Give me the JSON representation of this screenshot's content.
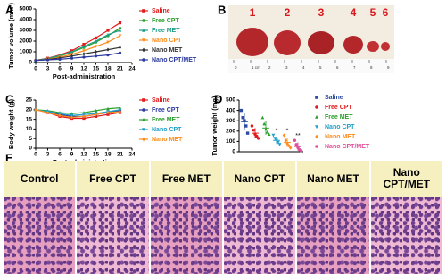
{
  "chart_data": [
    {
      "type": "line",
      "panel": "A",
      "xlabel": "Post-administration",
      "ylabel": "Tumor volume (mm³)",
      "x": [
        0,
        3,
        6,
        9,
        12,
        15,
        18,
        21
      ],
      "xlim": [
        0,
        24
      ],
      "xticks": [
        0,
        3,
        6,
        9,
        12,
        15,
        18,
        21,
        24
      ],
      "ylim": [
        0,
        5000
      ],
      "yticks": [
        0,
        1000,
        2000,
        3000,
        4000,
        5000
      ],
      "series": [
        {
          "name": "Saline",
          "color": "#e31a1c",
          "values": [
            200,
            400,
            700,
            1100,
            1700,
            2300,
            3000,
            3700
          ]
        },
        {
          "name": "Free CPT",
          "color": "#2ca02c",
          "values": [
            200,
            350,
            600,
            950,
            1400,
            1900,
            2500,
            3200
          ]
        },
        {
          "name": "Free MET",
          "color": "#1f9e89",
          "values": [
            200,
            380,
            650,
            1000,
            1500,
            2000,
            2600,
            3000
          ]
        },
        {
          "name": "Nano CPT",
          "color": "#ff8c1a",
          "values": [
            200,
            300,
            500,
            750,
            1100,
            1500,
            1900,
            2500
          ]
        },
        {
          "name": "Nano MET",
          "color": "#333333",
          "values": [
            200,
            280,
            420,
            600,
            800,
            1000,
            1200,
            1400
          ]
        },
        {
          "name": "Nano CPT/MET",
          "color": "#2b3a9e",
          "values": [
            200,
            250,
            300,
            400,
            500,
            600,
            700,
            900
          ]
        }
      ]
    },
    {
      "type": "line",
      "panel": "C",
      "xlabel": "Post administration",
      "ylabel": "Body weight (g)",
      "x": [
        0,
        3,
        6,
        9,
        12,
        15,
        18,
        21
      ],
      "xlim": [
        0,
        24
      ],
      "xticks": [
        0,
        3,
        6,
        9,
        12,
        15,
        18,
        21,
        24
      ],
      "ylim": [
        0,
        25
      ],
      "yticks": [
        0,
        5,
        10,
        15,
        20,
        25
      ],
      "series": [
        {
          "name": "Saline",
          "color": "#e31a1c",
          "values": [
            20,
            18.5,
            16.5,
            15.5,
            15.5,
            16.5,
            17.5,
            18.5
          ]
        },
        {
          "name": "Free CPT",
          "color": "#2b3a9e",
          "values": [
            20,
            19,
            17.5,
            16.5,
            16.5,
            17.5,
            18.5,
            19.5
          ]
        },
        {
          "name": "Free MET",
          "color": "#2ca02c",
          "values": [
            20,
            19.5,
            18.5,
            18,
            18.5,
            19.5,
            20.5,
            21
          ]
        },
        {
          "name": "Nano CPT",
          "color": "#1fa0c8",
          "values": [
            20,
            19,
            18,
            17,
            17.5,
            18,
            19,
            20
          ]
        },
        {
          "name": "Nano MET",
          "color": "#ff8c1a",
          "values": [
            20,
            18.5,
            17,
            16,
            16.5,
            17.5,
            18.5,
            19
          ]
        }
      ]
    },
    {
      "type": "dot",
      "panel": "D",
      "ylabel": "Tumor weight (mg)",
      "ylim": [
        0,
        500
      ],
      "yticks": [
        0,
        100,
        200,
        300,
        400,
        500
      ],
      "series": [
        {
          "name": "Saline",
          "color": "#2b4ba0",
          "values": [
            400,
            330,
            300,
            250,
            180
          ],
          "mean": 290,
          "sd": 80
        },
        {
          "name": "Free CPT",
          "color": "#e31a1c",
          "values": [
            250,
            210,
            170,
            150,
            130
          ],
          "mean": 180,
          "sd": 50
        },
        {
          "name": "Free MET",
          "color": "#2ca02c",
          "values": [
            330,
            270,
            220,
            190,
            170
          ],
          "mean": 230,
          "sd": 65
        },
        {
          "name": "Nano CPT",
          "color": "#1fa0c8",
          "values": [
            160,
            130,
            110,
            90,
            70
          ],
          "mean": 110,
          "sd": 35,
          "sig": "*"
        },
        {
          "name": "Nano MET",
          "color": "#ff8c1a",
          "values": [
            160,
            110,
            80,
            60,
            40
          ],
          "mean": 90,
          "sd": 45,
          "sig": "*"
        },
        {
          "name": "Nano CPT/MET",
          "color": "#e0509a",
          "values": [
            110,
            70,
            40,
            20,
            10
          ],
          "mean": 50,
          "sd": 40,
          "sig": "**"
        }
      ]
    }
  ],
  "tumor_photo": {
    "panel": "B",
    "labels": [
      "1",
      "2",
      "3",
      "4",
      "5",
      "6"
    ],
    "ruler_labels": [
      "0",
      "1 cm",
      "2",
      "3",
      "4",
      "5",
      "6",
      "7",
      "8",
      "9"
    ]
  },
  "histology": {
    "panel": "E",
    "labels": [
      "Control",
      "Free CPT",
      "Free MET",
      "Nano CPT",
      "Nano MET",
      "Nano CPT/MET"
    ]
  }
}
